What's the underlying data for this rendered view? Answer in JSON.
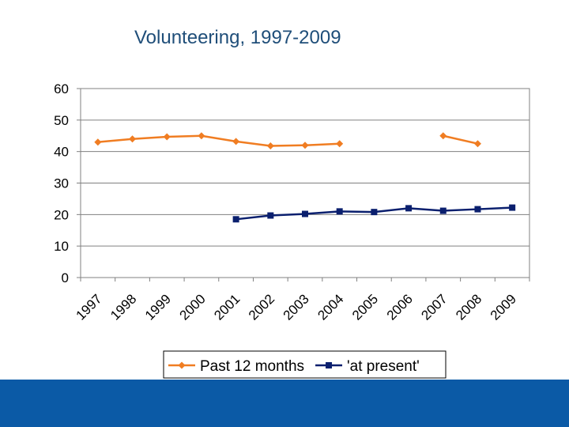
{
  "slide": {
    "title": "Volunteering, 1997-2009",
    "footer_color": "#0b5aa6"
  },
  "chart_data": {
    "type": "line",
    "title": "Volunteering, 1997-2009",
    "categories": [
      "1997",
      "1998",
      "1999",
      "2000",
      "2001",
      "2002",
      "2003",
      "2004",
      "2005",
      "2006",
      "2007",
      "2008",
      "2009"
    ],
    "ylim": [
      0,
      60
    ],
    "yticks": [
      0,
      10,
      20,
      30,
      40,
      50,
      60
    ],
    "grid": true,
    "legend_position": "bottom",
    "series": [
      {
        "name": "Past 12 months",
        "color": "#f07d22",
        "marker": "diamond",
        "values": [
          43,
          44,
          44.7,
          45,
          43.2,
          41.8,
          42,
          42.5,
          null,
          null,
          45,
          42.5,
          null
        ]
      },
      {
        "name": "'at present'",
        "color": "#0a1f6e",
        "marker": "square",
        "values": [
          null,
          null,
          null,
          null,
          18.5,
          19.7,
          20.2,
          21,
          20.8,
          22,
          21.2,
          21.7,
          22.2
        ]
      }
    ]
  }
}
